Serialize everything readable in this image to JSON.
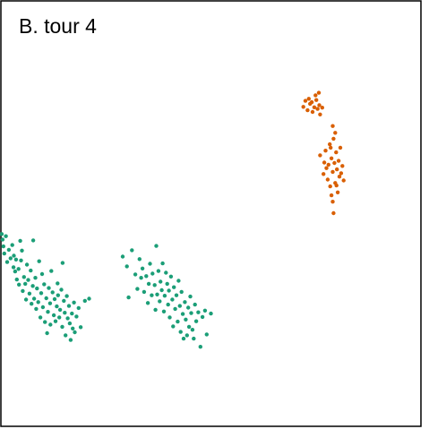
{
  "chart_data": {
    "type": "scatter",
    "title": "B. tour 4",
    "xlabel": "",
    "ylabel": "",
    "xlim": [
      0,
      100
    ],
    "ylim": [
      0,
      100
    ],
    "grid": false,
    "legend": "none",
    "series": [
      {
        "color": "#1b9e77",
        "points": [
          [
            0.2,
            45.2
          ],
          [
            0.4,
            43.9
          ],
          [
            0.6,
            42.3
          ],
          [
            0.8,
            40.6
          ],
          [
            1.2,
            44.7
          ],
          [
            1.5,
            38.6
          ],
          [
            1.9,
            41.5
          ],
          [
            2.3,
            39.5
          ],
          [
            2.7,
            42.6
          ],
          [
            3.0,
            37.4
          ],
          [
            3.1,
            40.1
          ],
          [
            3.4,
            36.4
          ],
          [
            3.6,
            39.2
          ],
          [
            3.8,
            34.5
          ],
          [
            4.2,
            37.0
          ],
          [
            4.3,
            33.3
          ],
          [
            4.6,
            43.6
          ],
          [
            4.8,
            39.0
          ],
          [
            5.0,
            41.3
          ],
          [
            5.2,
            31.8
          ],
          [
            5.5,
            35.1
          ],
          [
            5.8,
            33.5
          ],
          [
            6.0,
            29.8
          ],
          [
            6.2,
            38.0
          ],
          [
            6.5,
            34.4
          ],
          [
            6.8,
            31.2
          ],
          [
            7.1,
            36.6
          ],
          [
            7.3,
            28.8
          ],
          [
            7.6,
            33.0
          ],
          [
            7.7,
            43.7
          ],
          [
            7.9,
            30.0
          ],
          [
            8.2,
            34.9
          ],
          [
            8.4,
            27.6
          ],
          [
            8.6,
            32.4
          ],
          [
            8.9,
            29.2
          ],
          [
            9.1,
            38.8
          ],
          [
            9.4,
            25.6
          ],
          [
            9.6,
            31.3
          ],
          [
            9.8,
            35.8
          ],
          [
            10.0,
            28.0
          ],
          [
            10.3,
            33.4
          ],
          [
            10.5,
            24.5
          ],
          [
            10.8,
            30.1
          ],
          [
            11.0,
            21.9
          ],
          [
            11.2,
            26.9
          ],
          [
            11.4,
            32.5
          ],
          [
            11.7,
            28.9
          ],
          [
            11.8,
            23.9
          ],
          [
            12.0,
            36.5
          ],
          [
            12.3,
            31.5
          ],
          [
            12.6,
            26.1
          ],
          [
            12.8,
            29.9
          ],
          [
            13.0,
            24.7
          ],
          [
            13.3,
            28.2
          ],
          [
            13.5,
            33.6
          ],
          [
            13.6,
            30.8
          ],
          [
            13.9,
            25.6
          ],
          [
            14.1,
            27.4
          ],
          [
            14.4,
            32.1
          ],
          [
            14.6,
            23.4
          ],
          [
            14.7,
            38.4
          ],
          [
            15.0,
            29.5
          ],
          [
            15.2,
            26.7
          ],
          [
            15.4,
            21.4
          ],
          [
            15.7,
            30.6
          ],
          [
            15.9,
            25.4
          ],
          [
            16.2,
            28.3
          ],
          [
            16.4,
            24.2
          ],
          [
            16.6,
            20.3
          ],
          [
            16.9,
            26.5
          ],
          [
            17.1,
            23.0
          ],
          [
            17.4,
            29.1
          ],
          [
            17.6,
            22.1
          ],
          [
            18.0,
            25.8
          ],
          [
            18.5,
            27.8
          ],
          [
            19.0,
            23.3
          ],
          [
            20.0,
            29.5
          ],
          [
            21.0,
            30.0
          ],
          [
            29.0,
            39.9
          ],
          [
            30.0,
            37.6
          ],
          [
            30.4,
            30.3
          ],
          [
            31.2,
            41.4
          ],
          [
            32.0,
            35.7
          ],
          [
            32.5,
            32.3
          ],
          [
            33.0,
            39.3
          ],
          [
            33.4,
            34.9
          ],
          [
            33.7,
            37.1
          ],
          [
            34.1,
            31.6
          ],
          [
            34.6,
            35.3
          ],
          [
            35.0,
            29.0
          ],
          [
            35.2,
            33.5
          ],
          [
            35.5,
            38.2
          ],
          [
            35.9,
            30.8
          ],
          [
            36.1,
            35.9
          ],
          [
            36.6,
            33.2
          ],
          [
            36.8,
            27.4
          ],
          [
            37.0,
            42.4
          ],
          [
            37.2,
            31.0
          ],
          [
            37.5,
            36.5
          ],
          [
            37.8,
            29.4
          ],
          [
            38.0,
            34.0
          ],
          [
            38.3,
            32.0
          ],
          [
            38.5,
            38.3
          ],
          [
            38.8,
            27.0
          ],
          [
            39.0,
            30.7
          ],
          [
            39.3,
            36.1
          ],
          [
            39.6,
            33.5
          ],
          [
            39.8,
            28.6
          ],
          [
            40.0,
            31.9
          ],
          [
            40.2,
            25.6
          ],
          [
            40.5,
            35.2
          ],
          [
            40.8,
            29.8
          ],
          [
            41.0,
            23.5
          ],
          [
            41.2,
            32.7
          ],
          [
            41.5,
            27.6
          ],
          [
            41.8,
            30.8
          ],
          [
            42.1,
            24.6
          ],
          [
            42.3,
            34.2
          ],
          [
            42.6,
            28.3
          ],
          [
            42.8,
            22.2
          ],
          [
            43.0,
            31.6
          ],
          [
            43.3,
            26.4
          ],
          [
            43.5,
            20.6
          ],
          [
            43.8,
            29.2
          ],
          [
            44.0,
            25.1
          ],
          [
            44.3,
            21.4
          ],
          [
            44.6,
            27.9
          ],
          [
            44.8,
            23.4
          ],
          [
            45.1,
            30.5
          ],
          [
            45.3,
            26.6
          ],
          [
            45.6,
            22.7
          ],
          [
            45.9,
            20.6
          ],
          [
            46.2,
            28.6
          ],
          [
            46.5,
            24.7
          ],
          [
            47.0,
            26.8
          ],
          [
            47.5,
            18.7
          ],
          [
            48.0,
            25.7
          ],
          [
            48.6,
            27.2
          ],
          [
            49.0,
            21.6
          ],
          [
            50.0,
            26.5
          ]
        ]
      },
      {
        "color": "#d95f02",
        "points": [
          [
            72.0,
            75.1
          ],
          [
            72.5,
            76.5
          ],
          [
            73.0,
            74.3
          ],
          [
            73.3,
            77.0
          ],
          [
            73.6,
            75.8
          ],
          [
            74.0,
            76.2
          ],
          [
            74.2,
            73.9
          ],
          [
            74.6,
            75.0
          ],
          [
            74.9,
            77.8
          ],
          [
            75.1,
            76.7
          ],
          [
            75.4,
            74.6
          ],
          [
            75.8,
            75.5
          ],
          [
            76.0,
            73.3
          ],
          [
            75.7,
            78.4
          ],
          [
            76.5,
            74.9
          ],
          [
            76.0,
            63.7
          ],
          [
            76.8,
            59.3
          ],
          [
            77.0,
            62.0
          ],
          [
            77.3,
            64.8
          ],
          [
            77.5,
            60.7
          ],
          [
            77.8,
            58.0
          ],
          [
            78.0,
            61.5
          ],
          [
            78.3,
            66.3
          ],
          [
            78.4,
            56.4
          ],
          [
            78.7,
            63.0
          ],
          [
            79.0,
            59.8
          ],
          [
            79.2,
            67.6
          ],
          [
            79.4,
            61.9
          ],
          [
            79.6,
            57.2
          ],
          [
            79.8,
            64.4
          ],
          [
            80.0,
            60.4
          ],
          [
            80.2,
            55.0
          ],
          [
            80.4,
            62.4
          ],
          [
            80.6,
            58.7
          ],
          [
            80.8,
            65.5
          ],
          [
            81.0,
            59.5
          ],
          [
            81.3,
            61.2
          ],
          [
            81.6,
            57.8
          ],
          [
            79.0,
            52.8
          ],
          [
            79.2,
            50.1
          ],
          [
            78.7,
            54.3
          ],
          [
            79.6,
            69.0
          ],
          [
            79.0,
            70.6
          ],
          [
            78.5,
            65.5
          ],
          [
            79.9,
            56.6
          ]
        ]
      }
    ]
  }
}
